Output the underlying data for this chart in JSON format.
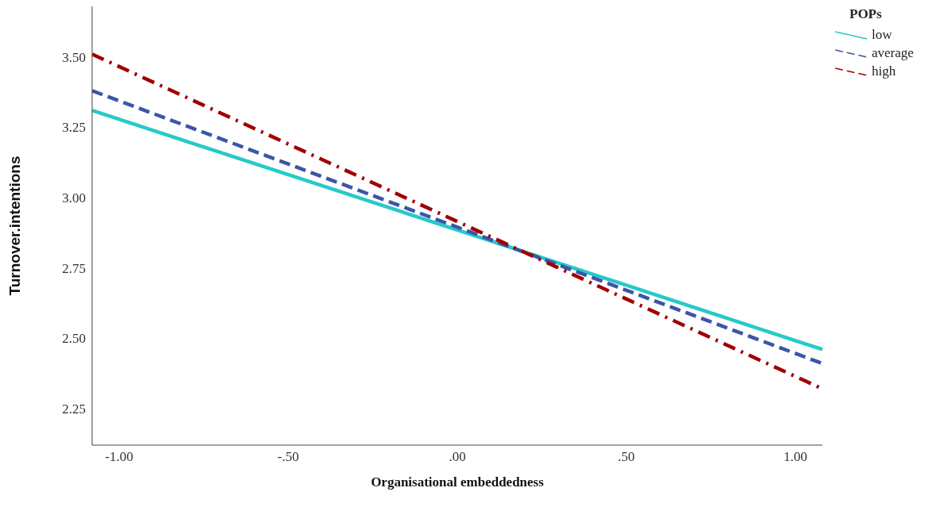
{
  "chart_data": {
    "type": "line",
    "xlabel": "Organisational embeddedness",
    "ylabel": "Turnover.intentions",
    "legend_title": "POPs",
    "legend": "top right",
    "grid": false,
    "marker": "none",
    "x": [
      -1.08,
      1.08
    ],
    "xlim": [
      -1.08,
      1.08
    ],
    "xticks": [
      {
        "value": -1,
        "label": "-1.00"
      },
      {
        "value": -0.5,
        "label": "-.50"
      },
      {
        "value": 0,
        "label": ".00"
      },
      {
        "value": 0.5,
        "label": ".50"
      },
      {
        "value": 1,
        "label": "1.00"
      }
    ],
    "ylim": [
      2.12,
      3.68
    ],
    "yticks": [
      {
        "value": 2.25,
        "label": "2.25"
      },
      {
        "value": 2.5,
        "label": "2.50"
      },
      {
        "value": 2.75,
        "label": "2.75"
      },
      {
        "value": 3,
        "label": "3.00"
      },
      {
        "value": 3.25,
        "label": "3.25"
      },
      {
        "value": 3.5,
        "label": "3.50"
      }
    ],
    "series": [
      {
        "name": "low",
        "color": "#26c9c9",
        "values": [
          3.31,
          2.46
        ],
        "line_style": "solid"
      },
      {
        "name": "average",
        "color": "#3c55a8",
        "values": [
          3.38,
          2.41
        ],
        "line_style": "dashed"
      },
      {
        "name": "high",
        "color": "#a00000",
        "values": [
          3.51,
          2.32
        ],
        "line_style": "dashdot"
      }
    ]
  }
}
